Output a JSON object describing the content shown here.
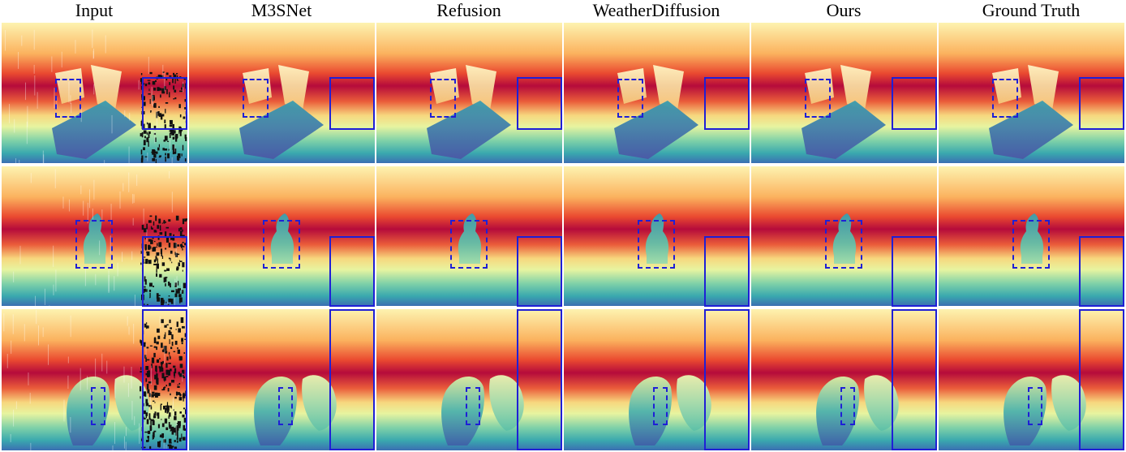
{
  "columns": [
    "Input",
    "M3SNet",
    "Refusion",
    "WeatherDiffusion",
    "Ours",
    "Ground Truth"
  ],
  "rows": [
    {
      "scene": "boxes-and-book"
    },
    {
      "scene": "bottle"
    },
    {
      "scene": "two-objects"
    }
  ],
  "colors": {
    "box": "#1f1fd6",
    "colormap": [
      "#fdf3b0",
      "#fbb25e",
      "#ea4a30",
      "#b50b3b",
      "#ea5c3a",
      "#f7d77e",
      "#e7f4a0",
      "#7fd1a8",
      "#3aa8ae",
      "#3b6fb2",
      "#5c52a3"
    ]
  }
}
